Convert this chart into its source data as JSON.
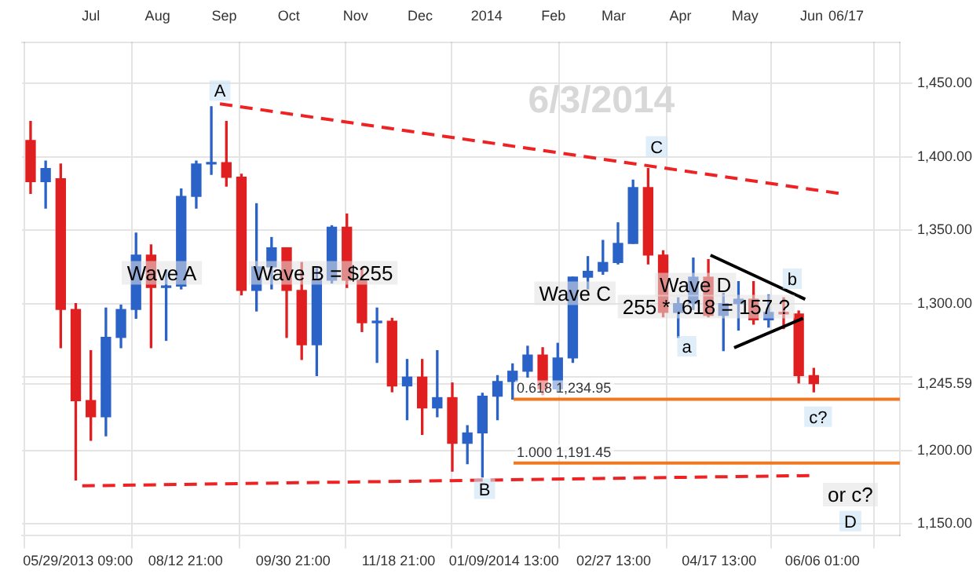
{
  "chart_data": {
    "type": "candlestick",
    "x": [
      "2013-06-03",
      "2013-06-10",
      "2013-06-17",
      "2013-06-24",
      "2013-07-01",
      "2013-07-08",
      "2013-07-15",
      "2013-07-22",
      "2013-07-29",
      "2013-08-05",
      "2013-08-12",
      "2013-08-19",
      "2013-08-26",
      "2013-09-02",
      "2013-09-09",
      "2013-09-16",
      "2013-09-23",
      "2013-09-30",
      "2013-10-07",
      "2013-10-14",
      "2013-10-21",
      "2013-10-28",
      "2013-11-04",
      "2013-11-11",
      "2013-11-18",
      "2013-11-25",
      "2013-12-02",
      "2013-12-09",
      "2013-12-16",
      "2013-12-23",
      "2013-12-30",
      "2014-01-06",
      "2014-01-13",
      "2014-01-20",
      "2014-01-27",
      "2014-02-03",
      "2014-02-10",
      "2014-02-17",
      "2014-02-24",
      "2014-03-03",
      "2014-03-10",
      "2014-03-17",
      "2014-03-24",
      "2014-03-31",
      "2014-04-07",
      "2014-04-14",
      "2014-04-21",
      "2014-04-28",
      "2014-05-05",
      "2014-05-12",
      "2014-05-19",
      "2014-05-26",
      "2014-06-02"
    ],
    "ohlc": [
      [
        1411,
        1424,
        1375,
        1383
      ],
      [
        1383,
        1397,
        1365,
        1392
      ],
      [
        1385,
        1395,
        1270,
        1296
      ],
      [
        1296,
        1300,
        1180,
        1234
      ],
      [
        1234,
        1268,
        1207,
        1223
      ],
      [
        1223,
        1297,
        1210,
        1277
      ],
      [
        1277,
        1299,
        1270,
        1296
      ],
      [
        1296,
        1348,
        1290,
        1333
      ],
      [
        1333,
        1340,
        1270,
        1311
      ],
      [
        1311,
        1323,
        1275,
        1312
      ],
      [
        1312,
        1378,
        1310,
        1373
      ],
      [
        1373,
        1397,
        1365,
        1395
      ],
      [
        1395,
        1434,
        1388,
        1396
      ],
      [
        1396,
        1424,
        1380,
        1386
      ],
      [
        1386,
        1388,
        1306,
        1309
      ],
      [
        1309,
        1368,
        1295,
        1325
      ],
      [
        1325,
        1345,
        1310,
        1338
      ],
      [
        1338,
        1338,
        1277,
        1309
      ],
      [
        1309,
        1328,
        1262,
        1272
      ],
      [
        1272,
        1324,
        1251,
        1316
      ],
      [
        1316,
        1353,
        1314,
        1352
      ],
      [
        1352,
        1361,
        1311,
        1316
      ],
      [
        1316,
        1324,
        1281,
        1287
      ],
      [
        1287,
        1297,
        1260,
        1288
      ],
      [
        1288,
        1290,
        1240,
        1244
      ],
      [
        1244,
        1262,
        1221,
        1250
      ],
      [
        1250,
        1262,
        1211,
        1229
      ],
      [
        1229,
        1268,
        1223,
        1236
      ],
      [
        1236,
        1246,
        1186,
        1205
      ],
      [
        1205,
        1217,
        1191,
        1212
      ],
      [
        1212,
        1239,
        1182,
        1237
      ],
      [
        1237,
        1251,
        1221,
        1247
      ],
      [
        1247,
        1259,
        1235,
        1254
      ],
      [
        1254,
        1271,
        1250,
        1265
      ],
      [
        1265,
        1270,
        1238,
        1242
      ],
      [
        1242,
        1273,
        1240,
        1263
      ],
      [
        1263,
        1318,
        1260,
        1318
      ],
      [
        1318,
        1332,
        1310,
        1322
      ],
      [
        1322,
        1343,
        1320,
        1328
      ],
      [
        1328,
        1355,
        1327,
        1341
      ],
      [
        1341,
        1384,
        1341,
        1379
      ],
      [
        1379,
        1392,
        1327,
        1333
      ],
      [
        1333,
        1336,
        1291,
        1294
      ],
      [
        1294,
        1304,
        1277,
        1300
      ],
      [
        1300,
        1331,
        1296,
        1318
      ],
      [
        1318,
        1330,
        1291,
        1292
      ],
      [
        1292,
        1307,
        1268,
        1300
      ],
      [
        1300,
        1315,
        1282,
        1303
      ],
      [
        1303,
        1315,
        1286,
        1289
      ],
      [
        1289,
        1306,
        1284,
        1294
      ],
      [
        1294,
        1304,
        1283,
        1293
      ],
      [
        1293,
        1295,
        1246,
        1251
      ],
      [
        1251,
        1256,
        1240,
        1245.59
      ]
    ],
    "colors": [
      "#e02020",
      "#2a62c8",
      "#e02020",
      "#e02020",
      "#e02020",
      "#2a62c8",
      "#2a62c8",
      "#2a62c8",
      "#e02020",
      "#2a62c8",
      "#2a62c8",
      "#2a62c8",
      "#2a62c8",
      "#e02020",
      "#e02020",
      "#2a62c8",
      "#2a62c8",
      "#e02020",
      "#e02020",
      "#2a62c8",
      "#2a62c8",
      "#e02020",
      "#e02020",
      "#2a62c8",
      "#e02020",
      "#2a62c8",
      "#e02020",
      "#2a62c8",
      "#e02020",
      "#2a62c8",
      "#2a62c8",
      "#2a62c8",
      "#2a62c8",
      "#2a62c8",
      "#e02020",
      "#2a62c8",
      "#2a62c8",
      "#2a62c8",
      "#2a62c8",
      "#2a62c8",
      "#2a62c8",
      "#e02020",
      "#e02020",
      "#2a62c8",
      "#2a62c8",
      "#e02020",
      "#2a62c8",
      "#2a62c8",
      "#e02020",
      "#2a62c8",
      "#e02020",
      "#e02020",
      "#e02020"
    ],
    "series": [
      {
        "type": "line",
        "x": [
          "2013-08-30",
          "2014-06-14"
        ],
        "values": [
          1436,
          1375
        ],
        "color": "#ee2222",
        "line_style": "dashed"
      },
      {
        "type": "line",
        "x": [
          "2013-06-27",
          "2014-05-31"
        ],
        "values": [
          1176,
          1183
        ],
        "color": "#ee2222",
        "line_style": "dashed"
      },
      {
        "type": "line",
        "x": [
          "2014-04-15",
          "2014-05-29"
        ],
        "values": [
          1333,
          1303
        ],
        "color": "#000000",
        "line_style": "solid"
      },
      {
        "type": "line",
        "x": [
          "2014-04-26",
          "2014-05-28"
        ],
        "values": [
          1270,
          1290
        ],
        "color": "#000000",
        "line_style": "solid"
      }
    ],
    "xlim": [
      "2013-05-30",
      "2014-07-12"
    ],
    "xticks": [
      {
        "value": "2013-06-25",
        "label": "05/29/2013 09:00"
      },
      {
        "value": "2013-08-14",
        "label": "08/12 21:00"
      },
      {
        "value": "2013-10-03",
        "label": "09/30 21:00"
      },
      {
        "value": "2013-11-21",
        "label": "11/18 21:00"
      },
      {
        "value": "2014-01-09",
        "label": "01/09/2014 13:00"
      },
      {
        "value": "2014-03-01",
        "label": "02/27 13:00"
      },
      {
        "value": "2014-04-19",
        "label": "04/17 13:00"
      },
      {
        "value": "2014-06-06",
        "label": "06/06 01:00"
      }
    ],
    "x2lim": [
      "2013-05-30",
      "2014-07-12"
    ],
    "x2ticks": [
      {
        "value": "2013-07-01",
        "label": "Jul"
      },
      {
        "value": "2013-08-01",
        "label": "Aug"
      },
      {
        "value": "2013-09-01",
        "label": "Sep"
      },
      {
        "value": "2013-10-01",
        "label": "Oct"
      },
      {
        "value": "2013-11-01",
        "label": "Nov"
      },
      {
        "value": "2013-12-01",
        "label": "Dec"
      },
      {
        "value": "2014-01-01",
        "label": "2014"
      },
      {
        "value": "2014-02-01",
        "label": "Feb"
      },
      {
        "value": "2014-03-01",
        "label": "Mar"
      },
      {
        "value": "2014-04-01",
        "label": "Apr"
      },
      {
        "value": "2014-05-01",
        "label": "May"
      },
      {
        "value": "2014-06-01",
        "label": "Jun"
      },
      {
        "value": "2014-06-17",
        "label": "06/17"
      }
    ],
    "ylim": [
      1142,
      1478
    ],
    "yticks": [
      {
        "value": 1150,
        "label": "1,150.00"
      },
      {
        "value": 1200,
        "label": "1,200.00"
      },
      {
        "value": 1245.59,
        "label": "1,245.59"
      },
      {
        "value": 1250,
        "label": null
      },
      {
        "value": 1300,
        "label": "1,300.00"
      },
      {
        "value": 1350,
        "label": "1,350.00"
      },
      {
        "value": 1400,
        "label": "1,400.00"
      },
      {
        "value": 1450,
        "label": "1,450.00"
      }
    ],
    "grid": true,
    "ref_lines": [
      {
        "axis": "y",
        "value": 1234.95,
        "label": "0.618 1,234.95",
        "color": "#f07820"
      },
      {
        "axis": "y",
        "value": 1191.45,
        "label": "1.000 1,191.45",
        "color": "#f07820"
      }
    ],
    "annotations": [
      "6/3/2014",
      {
        "text": "A",
        "x": "2013-08-30",
        "y": 1445
      },
      {
        "text": "Wave A",
        "x": "2013-08-03",
        "y": 1321
      },
      {
        "text": "Wave B = $255",
        "x": "2013-10-17",
        "y": 1321
      },
      {
        "text": "B",
        "x": "2013-12-31",
        "y": 1174
      },
      {
        "text": "Wave C",
        "x": "2014-02-11",
        "y": 1307
      },
      {
        "text": "C",
        "x": "2014-03-21",
        "y": 1407
      },
      {
        "text": "Wave D",
        "x": "2014-04-08",
        "y": 1313
      },
      {
        "text": "255 * .618 = 157 ?",
        "x": "2014-04-13",
        "y": 1298
      },
      {
        "text": "a",
        "x": "2014-04-04",
        "y": 1271
      },
      {
        "text": "b",
        "x": "2014-05-23",
        "y": 1317
      },
      {
        "text": "c?",
        "x": "2014-06-04",
        "y": 1223
      },
      {
        "text": "or c?",
        "x": "2014-06-19",
        "y": 1170
      },
      {
        "text": "D",
        "x": "2014-06-19",
        "y": 1152
      }
    ]
  }
}
